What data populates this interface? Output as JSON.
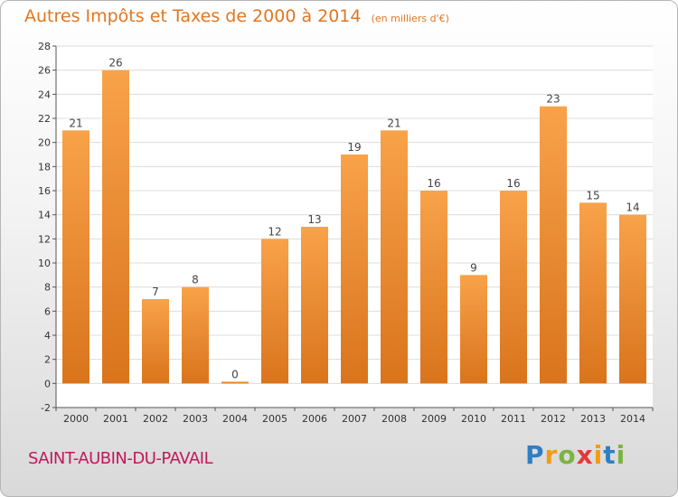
{
  "chart_data": {
    "type": "bar",
    "title": "Autres Impôts et Taxes de 2000 à 2014",
    "subtitle": "(en milliers d'€)",
    "categories": [
      "2000",
      "2001",
      "2002",
      "2003",
      "2004",
      "2005",
      "2006",
      "2007",
      "2008",
      "2009",
      "2010",
      "2011",
      "2012",
      "2013",
      "2014"
    ],
    "values": [
      21,
      26,
      7,
      8,
      0,
      12,
      13,
      19,
      21,
      16,
      9,
      16,
      23,
      15,
      14
    ],
    "ylim": [
      -2,
      28
    ],
    "yticks": [
      -2,
      0,
      2,
      4,
      6,
      8,
      10,
      12,
      14,
      16,
      18,
      20,
      22,
      24,
      26,
      28
    ],
    "grid": true,
    "bar_color": "#f0922f",
    "xlabel": "",
    "ylabel": ""
  },
  "footer": {
    "commune": "SAINT-AUBIN-DU-PAVAIL",
    "brand_letters": [
      {
        "char": "P",
        "color": "#2e7fc4"
      },
      {
        "char": "r",
        "color": "#f39c12"
      },
      {
        "char": "o",
        "color": "#7cb342"
      },
      {
        "char": "x",
        "color": "#e53935"
      },
      {
        "char": "i",
        "color": "#f39c12"
      },
      {
        "char": "t",
        "color": "#2e7fc4"
      },
      {
        "char": "i",
        "color": "#7cb342"
      }
    ]
  }
}
